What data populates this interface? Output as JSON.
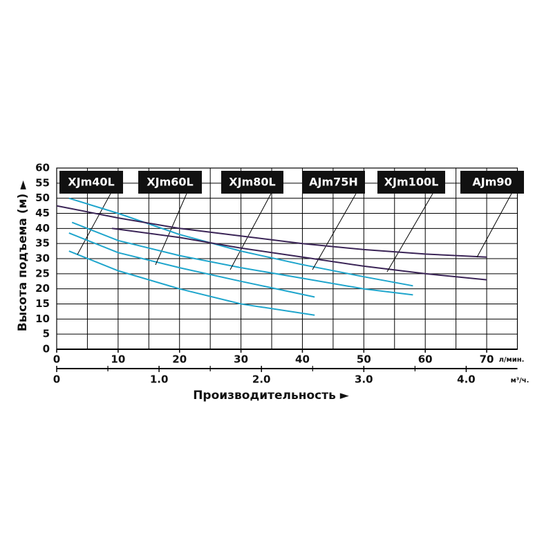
{
  "chart_data": {
    "type": "line",
    "ylabel": "Высота подъема (м) ►",
    "xlabel": "Производительность ►",
    "x_unit": "л/мин.",
    "x2_unit": "м³/ч.",
    "xlim": [
      0,
      75
    ],
    "xticks": [
      0,
      10,
      20,
      30,
      40,
      50,
      60,
      70
    ],
    "x_minor_ticks": [
      5,
      15,
      25,
      35,
      45,
      55,
      65
    ],
    "x2lim": [
      0,
      4.5
    ],
    "x2ticks": [
      0,
      {
        "value": 1,
        "label": "1.0"
      },
      {
        "value": 2,
        "label": "2.0"
      },
      {
        "value": 3,
        "label": "3.0"
      },
      {
        "value": 4,
        "label": "4.0"
      }
    ],
    "x2_minor_ticks": [
      0.5,
      1.5,
      2.5,
      3.5
    ],
    "ylim": [
      0,
      60
    ],
    "yticks": [
      0,
      5,
      10,
      15,
      20,
      25,
      30,
      35,
      40,
      45,
      50,
      55,
      60
    ],
    "grid": true,
    "series": [
      {
        "name": "XJm40L",
        "color": "#1ea5cc",
        "x": [
          2,
          10,
          20,
          30,
          42
        ],
        "values": [
          32.5,
          26,
          20,
          15,
          11.3
        ]
      },
      {
        "name": "XJm60L",
        "color": "#1ea5cc",
        "x": [
          2,
          10,
          20,
          30,
          42
        ],
        "values": [
          38.5,
          32,
          27,
          22.5,
          17.3
        ]
      },
      {
        "name": "XJm80L",
        "color": "#1ea5cc",
        "x": [
          2.5,
          10,
          20,
          30,
          40,
          50,
          58
        ],
        "values": [
          42,
          36,
          31,
          27,
          23.5,
          20,
          18
        ]
      },
      {
        "name": "AJm75H",
        "color": "#1ea5cc",
        "x": [
          2,
          10,
          20,
          30,
          40,
          50,
          58
        ],
        "values": [
          50,
          45,
          38,
          32.5,
          28,
          24,
          21
        ]
      },
      {
        "name": "XJm100L",
        "color": "#3a2456",
        "x": [
          9,
          20,
          30,
          40,
          50,
          60,
          70
        ],
        "values": [
          40,
          37,
          33.5,
          30.5,
          27.5,
          25,
          23
        ]
      },
      {
        "name": "AJm90",
        "color": "#3a2456",
        "x": [
          0,
          10,
          20,
          30,
          40,
          50,
          60,
          70
        ],
        "values": [
          47.5,
          43.5,
          40,
          37.5,
          35,
          33,
          31.5,
          30.5
        ]
      }
    ]
  }
}
